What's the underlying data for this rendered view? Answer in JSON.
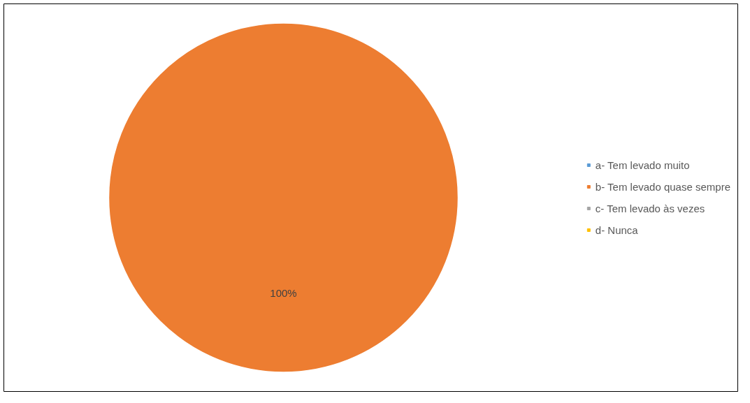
{
  "chart_data": {
    "type": "pie",
    "categories": [
      "a- Tem levado muito",
      "b- Tem levado quase sempre",
      "c- Tem levado às vezes",
      "d- Nunca"
    ],
    "values": [
      0,
      100,
      0,
      0
    ],
    "colors": [
      "#5b9bd5",
      "#ed7d31",
      "#a5a5a5",
      "#ffc000"
    ],
    "value_labels": [
      null,
      "100%",
      null,
      null
    ],
    "legend": "right"
  }
}
